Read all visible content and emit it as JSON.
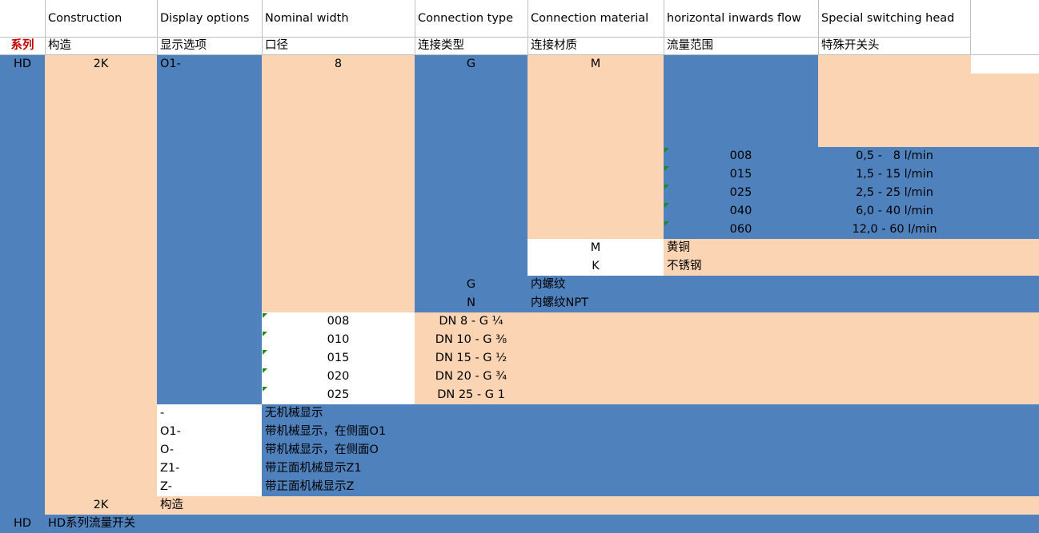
{
  "header_en": {
    "construction": "Construction",
    "display": "Display options",
    "width": "Nominal width",
    "conn_type": "Connection type",
    "conn_mat": "Connection material",
    "flow": "horizontal inwards flow",
    "switch": "Special switching head"
  },
  "header_cn": {
    "series": "系列",
    "construction": "构造",
    "display": "显示选项",
    "width": "口径",
    "conn_type": "连接类型",
    "conn_mat": "连接材质",
    "flow": "流量范围",
    "switch": "特殊开关头"
  },
  "code_row": {
    "series": "HD",
    "construction": "2K",
    "display": "O1-",
    "width": "8",
    "conn_type": "G",
    "conn_mat": "M"
  },
  "flow_options": [
    {
      "code": "008",
      "range": "0,5 -   8 l/min"
    },
    {
      "code": "015",
      "range": "1,5 - 15 l/min"
    },
    {
      "code": "025",
      "range": "2,5 - 25 l/min"
    },
    {
      "code": "040",
      "range": "6,0 - 40 l/min"
    },
    {
      "code": "060",
      "range": "12,0 - 60 l/min"
    }
  ],
  "material_options": [
    {
      "code": "M",
      "label": "黄铜"
    },
    {
      "code": "K",
      "label": "不锈钢"
    }
  ],
  "conn_type_options": [
    {
      "code": "G",
      "label": "内螺纹"
    },
    {
      "code": "N",
      "label": "内螺纹NPT"
    }
  ],
  "width_options": [
    {
      "code": "008",
      "label": "DN 8 - G ¼"
    },
    {
      "code": "010",
      "label": "DN 10 - G ⅜"
    },
    {
      "code": "015",
      "label": "DN 15 - G ½"
    },
    {
      "code": "020",
      "label": "DN 20 - G ¾"
    },
    {
      "code": "025",
      "label": "DN 25 - G 1"
    }
  ],
  "display_options": [
    {
      "code": "-",
      "label": "无机械显示"
    },
    {
      "code": "O1-",
      "label": "带机械显示，在侧面O1"
    },
    {
      "code": "O-",
      "label": "带机械显示，在侧面O"
    },
    {
      "code": "Z1-",
      "label": "带正面机械显示Z1"
    },
    {
      "code": "Z-",
      "label": "带正面机械显示Z"
    }
  ],
  "construction_option": {
    "code": "2K",
    "label": "构造"
  },
  "series_option": {
    "code": "HD",
    "label": "HD系列流量开关"
  },
  "colors": {
    "blue": "#4f81bd",
    "peach": "#fbd4b4",
    "series_red": "#c00000",
    "flag_green": "#1e8a1e"
  }
}
